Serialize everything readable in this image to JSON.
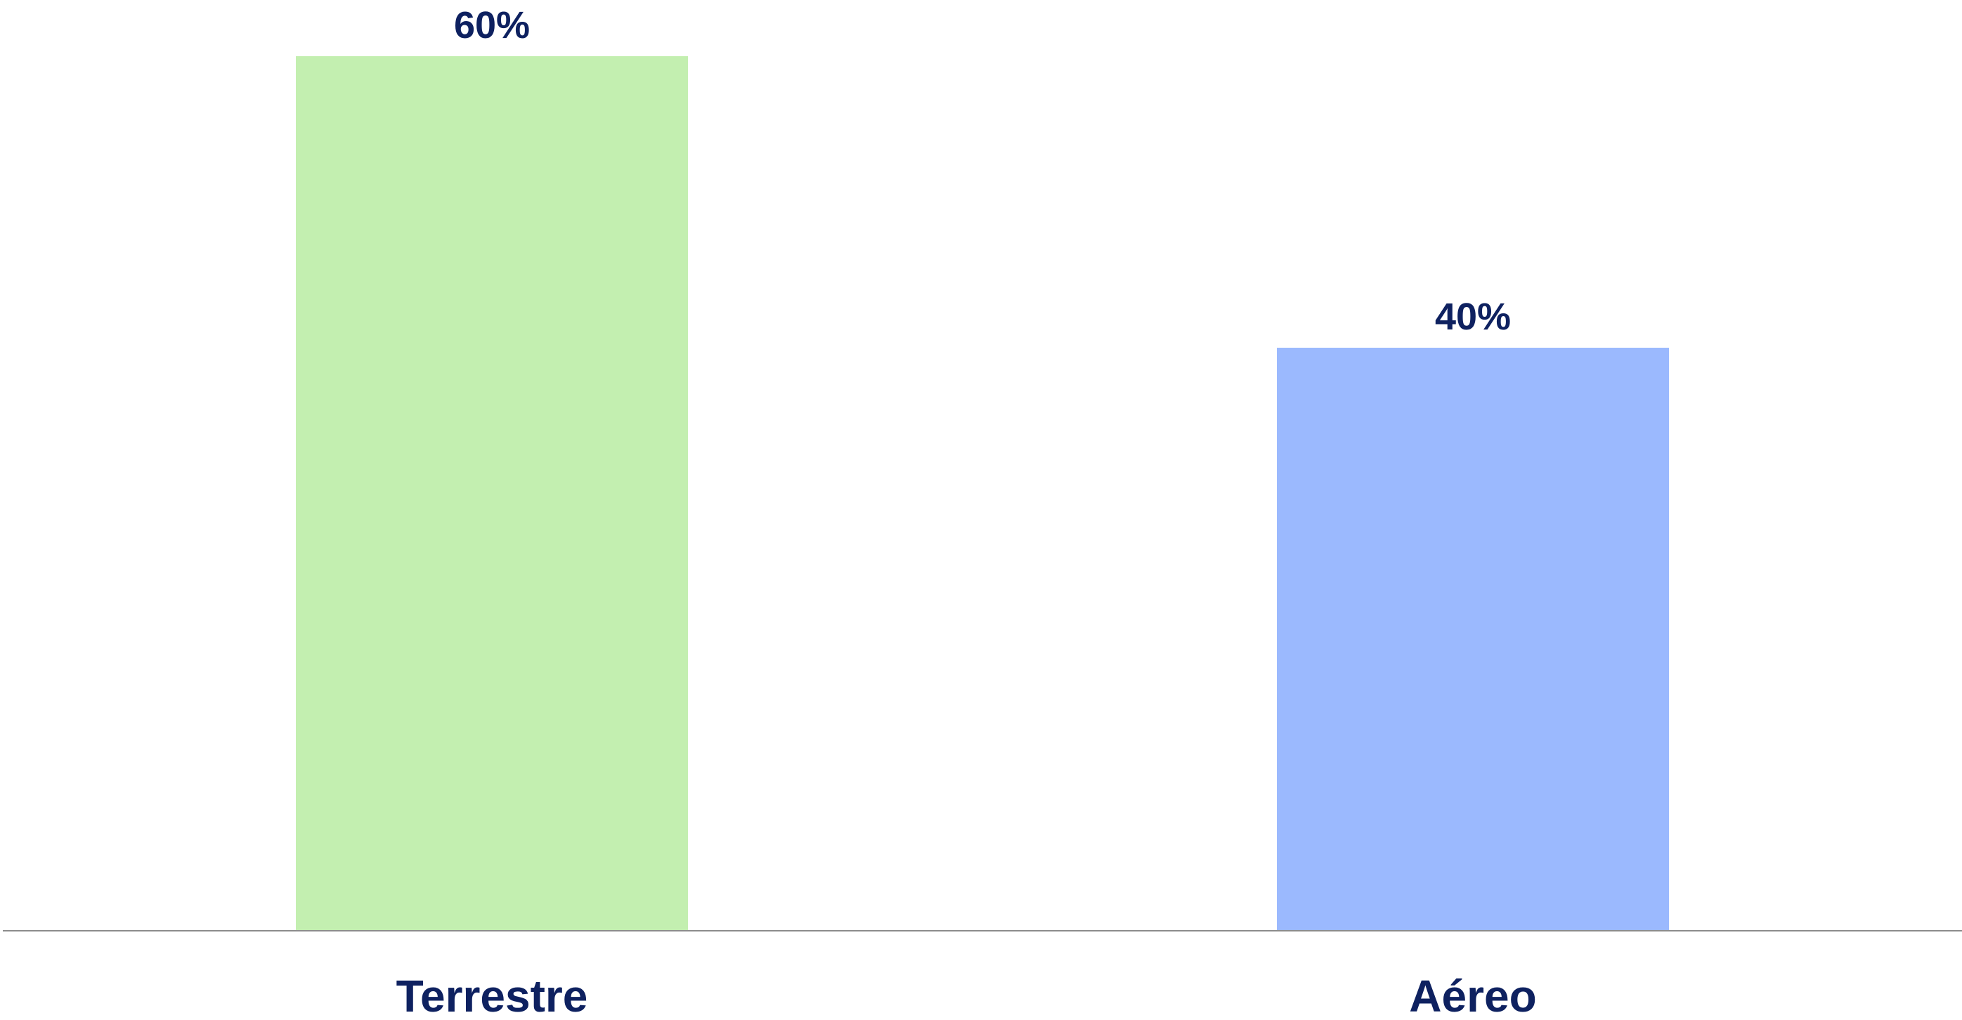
{
  "chart_data": {
    "type": "bar",
    "categories": [
      "Terrestre",
      "Aéreo"
    ],
    "values": [
      60,
      40
    ],
    "value_labels": [
      "60%",
      "40%"
    ],
    "colors": [
      "#c3efb0",
      "#9bb9fe"
    ],
    "label_color": "#0e2160",
    "axis_color": "#8c8c8c",
    "title": "",
    "xlabel": "",
    "ylabel": "",
    "ylim": [
      0,
      60
    ],
    "grid": false,
    "legend": "none"
  }
}
